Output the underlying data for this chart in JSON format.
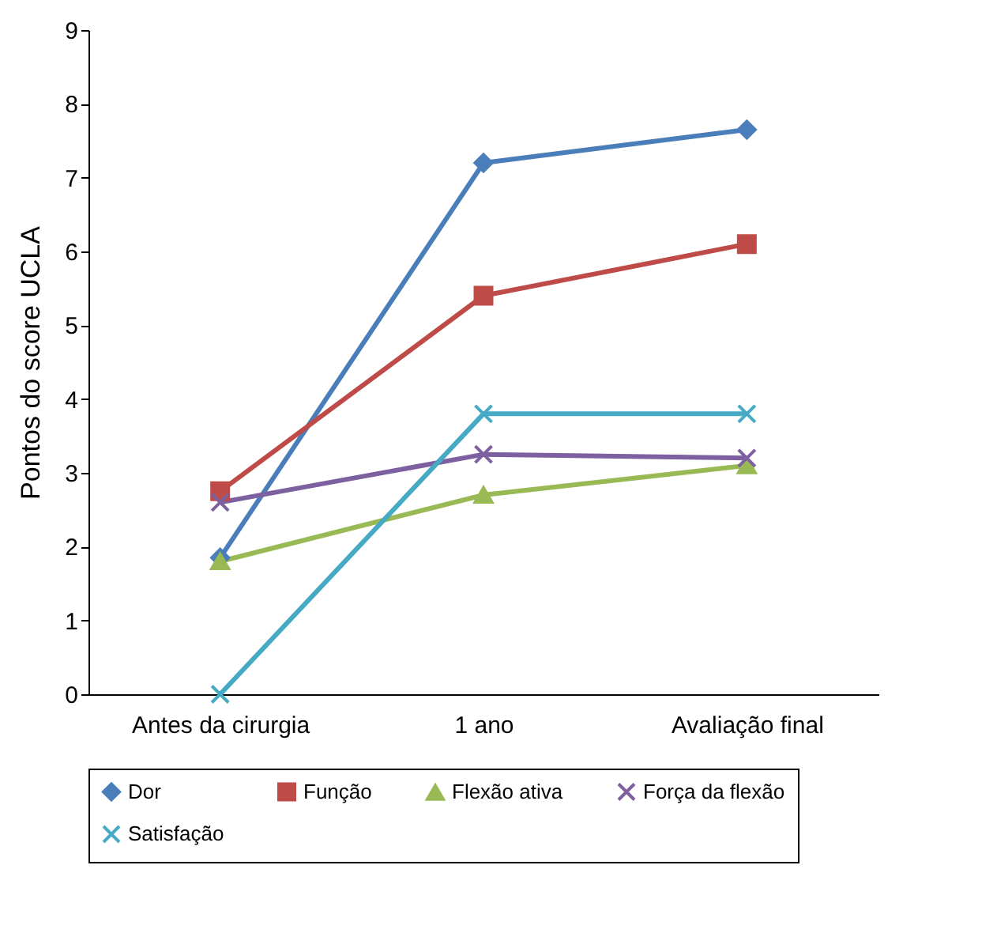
{
  "chart_data": {
    "type": "line",
    "ylabel": "Pontos do score UCLA",
    "categories": [
      "Antes da cirurgia",
      "1 ano",
      "Avaliação final"
    ],
    "ylim": [
      0,
      9
    ],
    "yticks": [
      0,
      1,
      2,
      3,
      4,
      5,
      6,
      7,
      8,
      9
    ],
    "grid": false,
    "legend": "bottom",
    "series": [
      {
        "name": "Dor",
        "color": "#4a7ebb",
        "marker": "diamond",
        "values": [
          1.85,
          7.2,
          7.65
        ]
      },
      {
        "name": "Função",
        "color": "#be4b48",
        "marker": "square",
        "values": [
          2.75,
          5.4,
          6.1
        ]
      },
      {
        "name": "Flexão ativa",
        "color": "#98b954",
        "marker": "triangle",
        "values": [
          1.8,
          2.7,
          3.1
        ]
      },
      {
        "name": "Força da flexão",
        "color": "#7d60a0",
        "marker": "cross",
        "values": [
          2.6,
          3.25,
          3.2
        ]
      },
      {
        "name": "Satisfação",
        "color": "#46aac5",
        "marker": "cross",
        "values": [
          0,
          3.8,
          3.8
        ]
      }
    ]
  }
}
